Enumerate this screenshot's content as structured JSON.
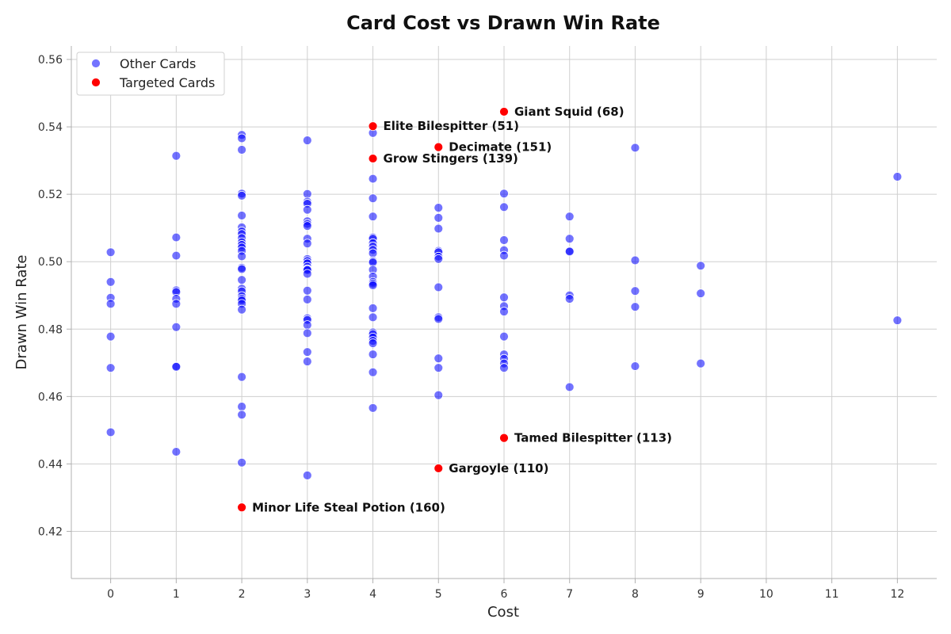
{
  "chart_data": {
    "type": "scatter",
    "title": "Card Cost vs Drawn Win Rate",
    "xlabel": "Cost",
    "ylabel": "Drawn Win Rate",
    "xlim": [
      -0.6,
      12.6
    ],
    "ylim": [
      0.406,
      0.564
    ],
    "xticks": [
      "0",
      "1",
      "2",
      "3",
      "4",
      "5",
      "6",
      "7",
      "8",
      "9",
      "10",
      "11",
      "12"
    ],
    "yticks": [
      "0.42",
      "0.44",
      "0.46",
      "0.48",
      "0.50",
      "0.52",
      "0.54",
      "0.56"
    ],
    "grid": true,
    "legend_position": "top-left",
    "series": [
      {
        "name": "Other Cards",
        "color": "#0000ff",
        "points": [
          [
            0,
            0.5028
          ],
          [
            0,
            0.494
          ],
          [
            0,
            0.4893
          ],
          [
            0,
            0.4875
          ],
          [
            0,
            0.4778
          ],
          [
            0,
            0.4685
          ],
          [
            0,
            0.4494
          ],
          [
            1,
            0.5314
          ],
          [
            1,
            0.5072
          ],
          [
            1,
            0.5018
          ],
          [
            1,
            0.4915
          ],
          [
            1,
            0.491
          ],
          [
            1,
            0.489
          ],
          [
            1,
            0.4875
          ],
          [
            1,
            0.4806
          ],
          [
            1,
            0.469
          ],
          [
            1,
            0.4688
          ],
          [
            1,
            0.4436
          ],
          [
            2,
            0.5376
          ],
          [
            2,
            0.5366
          ],
          [
            2,
            0.5332
          ],
          [
            2,
            0.5202
          ],
          [
            2,
            0.5196
          ],
          [
            2,
            0.5137
          ],
          [
            2,
            0.5102
          ],
          [
            2,
            0.509
          ],
          [
            2,
            0.5082
          ],
          [
            2,
            0.507
          ],
          [
            2,
            0.5058
          ],
          [
            2,
            0.505
          ],
          [
            2,
            0.5042
          ],
          [
            2,
            0.5032
          ],
          [
            2,
            0.5016
          ],
          [
            2,
            0.4982
          ],
          [
            2,
            0.4978
          ],
          [
            2,
            0.4946
          ],
          [
            2,
            0.492
          ],
          [
            2,
            0.4912
          ],
          [
            2,
            0.4898
          ],
          [
            2,
            0.489
          ],
          [
            2,
            0.4885
          ],
          [
            2,
            0.4875
          ],
          [
            2,
            0.4858
          ],
          [
            2,
            0.4658
          ],
          [
            2,
            0.457
          ],
          [
            2,
            0.4546
          ],
          [
            2,
            0.4404
          ],
          [
            3,
            0.536
          ],
          [
            3,
            0.5201
          ],
          [
            3,
            0.5178
          ],
          [
            3,
            0.5172
          ],
          [
            3,
            0.5154
          ],
          [
            3,
            0.512
          ],
          [
            3,
            0.5112
          ],
          [
            3,
            0.5106
          ],
          [
            3,
            0.5068
          ],
          [
            3,
            0.5054
          ],
          [
            3,
            0.5008
          ],
          [
            3,
            0.5002
          ],
          [
            3,
            0.4995
          ],
          [
            3,
            0.4985
          ],
          [
            3,
            0.4978
          ],
          [
            3,
            0.4975
          ],
          [
            3,
            0.4964
          ],
          [
            3,
            0.4914
          ],
          [
            3,
            0.4888
          ],
          [
            3,
            0.4832
          ],
          [
            3,
            0.4827
          ],
          [
            3,
            0.4812
          ],
          [
            3,
            0.4788
          ],
          [
            3,
            0.4732
          ],
          [
            3,
            0.4704
          ],
          [
            3,
            0.4366
          ],
          [
            4,
            0.5382
          ],
          [
            4,
            0.5246
          ],
          [
            4,
            0.5188
          ],
          [
            4,
            0.5134
          ],
          [
            4,
            0.5072
          ],
          [
            4,
            0.5068
          ],
          [
            4,
            0.5055
          ],
          [
            4,
            0.5045
          ],
          [
            4,
            0.5035
          ],
          [
            4,
            0.5025
          ],
          [
            4,
            0.5002
          ],
          [
            4,
            0.4998
          ],
          [
            4,
            0.4976
          ],
          [
            4,
            0.4956
          ],
          [
            4,
            0.494
          ],
          [
            4,
            0.4935
          ],
          [
            4,
            0.493
          ],
          [
            4,
            0.4862
          ],
          [
            4,
            0.4835
          ],
          [
            4,
            0.479
          ],
          [
            4,
            0.4785
          ],
          [
            4,
            0.4775
          ],
          [
            4,
            0.4765
          ],
          [
            4,
            0.4758
          ],
          [
            4,
            0.4725
          ],
          [
            4,
            0.4672
          ],
          [
            4,
            0.4566
          ],
          [
            5,
            0.516
          ],
          [
            5,
            0.513
          ],
          [
            5,
            0.5098
          ],
          [
            5,
            0.5032
          ],
          [
            5,
            0.5028
          ],
          [
            5,
            0.5015
          ],
          [
            5,
            0.5008
          ],
          [
            5,
            0.4924
          ],
          [
            5,
            0.4835
          ],
          [
            5,
            0.483
          ],
          [
            5,
            0.4713
          ],
          [
            5,
            0.4685
          ],
          [
            5,
            0.4604
          ],
          [
            6,
            0.5202
          ],
          [
            6,
            0.5162
          ],
          [
            6,
            0.5064
          ],
          [
            6,
            0.5034
          ],
          [
            6,
            0.5018
          ],
          [
            6,
            0.4894
          ],
          [
            6,
            0.4868
          ],
          [
            6,
            0.4852
          ],
          [
            6,
            0.4778
          ],
          [
            6,
            0.4725
          ],
          [
            6,
            0.4712
          ],
          [
            6,
            0.4698
          ],
          [
            6,
            0.4685
          ],
          [
            7,
            0.5134
          ],
          [
            7,
            0.5068
          ],
          [
            7,
            0.5032
          ],
          [
            7,
            0.503
          ],
          [
            7,
            0.49
          ],
          [
            7,
            0.489
          ],
          [
            7,
            0.4628
          ],
          [
            8,
            0.5338
          ],
          [
            8,
            0.5004
          ],
          [
            8,
            0.4913
          ],
          [
            8,
            0.4866
          ],
          [
            8,
            0.469
          ],
          [
            9,
            0.4988
          ],
          [
            9,
            0.4906
          ],
          [
            9,
            0.4698
          ],
          [
            12,
            0.5252
          ],
          [
            12,
            0.4826
          ]
        ]
      },
      {
        "name": "Targeted Cards",
        "color": "#ff0000",
        "points": [
          {
            "x": 6,
            "y": 0.5445,
            "label": "Giant Squid (68)"
          },
          {
            "x": 4,
            "y": 0.5402,
            "label": "Elite Bilespitter (51)"
          },
          {
            "x": 5,
            "y": 0.534,
            "label": "Decimate (151)"
          },
          {
            "x": 4,
            "y": 0.5306,
            "label": "Grow Stingers (139)"
          },
          {
            "x": 6,
            "y": 0.4477,
            "label": "Tamed Bilespitter (113)"
          },
          {
            "x": 5,
            "y": 0.4387,
            "label": "Gargoyle (110)"
          },
          {
            "x": 2,
            "y": 0.4271,
            "label": "Minor Life Steal Potion (160)"
          }
        ]
      }
    ]
  }
}
